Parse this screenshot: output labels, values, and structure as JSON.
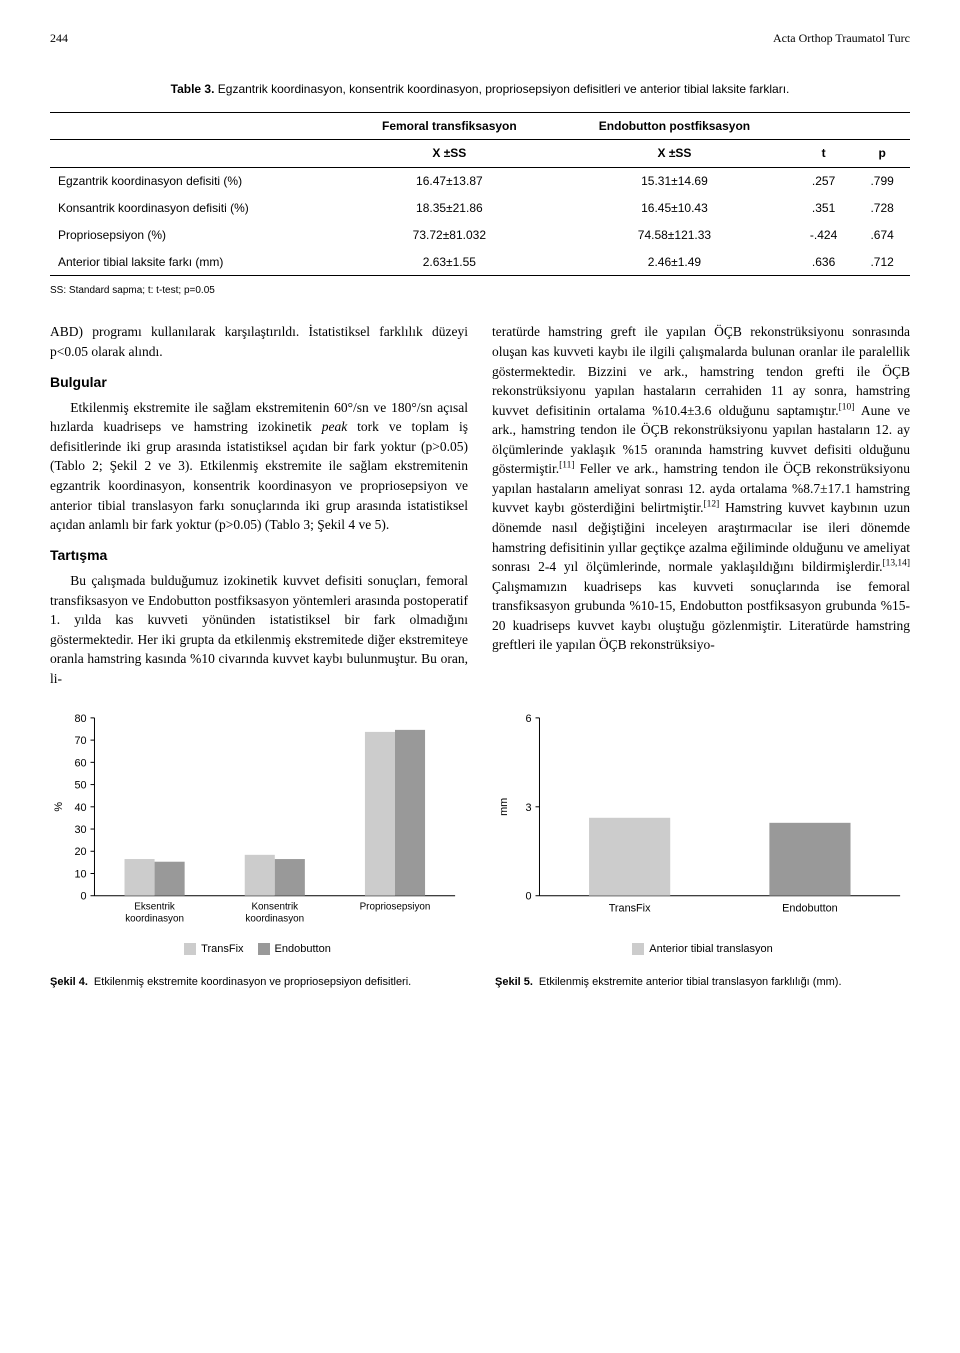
{
  "header": {
    "page_number": "244",
    "journal": "Acta Orthop Traumatol Turc"
  },
  "table3": {
    "label": "Table 3.",
    "caption": "Egzantrik koordinasyon, konsentrik koordinasyon, propriosepsiyon defisitleri ve anterior tibial laksite farkları.",
    "head_group1": "Femoral transfiksasyon",
    "head_group2": "Endobutton postfiksasyon",
    "col_xss": "X ±SS",
    "col_t": "t",
    "col_p": "p",
    "rows": [
      {
        "label": "Egzantrik koordinasyon defisiti (%)",
        "v1": "16.47±13.87",
        "v2": "15.31±14.69",
        "t": ".257",
        "p": ".799"
      },
      {
        "label": "Konsantrik koordinasyon defisiti (%)",
        "v1": "18.35±21.86",
        "v2": "16.45±10.43",
        "t": ".351",
        "p": ".728"
      },
      {
        "label": "Propriosepsiyon (%)",
        "v1": "73.72±81.032",
        "v2": "74.58±121.33",
        "t": "-.424",
        "p": ".674"
      },
      {
        "label": "Anterior tibial laksite farkı (mm)",
        "v1": "2.63±1.55",
        "v2": "2.46±1.49",
        "t": ".636",
        "p": ".712"
      }
    ],
    "footnote": "SS: Standard sapma; t: t-test; p=0.05"
  },
  "body": {
    "left": {
      "p1": "ABD) programı kullanılarak karşılaştırıldı. İstatistiksel farklılık düzeyi p<0.05 olarak alındı.",
      "h1": "Bulgular",
      "p2a": "Etkilenmiş ekstremite ile sağlam ekstremitenin 60°/sn ve 180°/sn açısal hızlarda kuadriseps ve hamstring izokinetik ",
      "p2b": "peak",
      "p2c": " tork ve toplam iş defisitlerinde iki grup arasında istatistiksel açıdan bir fark yoktur (p>0.05) (Tablo 2; Şekil 2 ve 3). Etkilenmiş ekstremite ile sağlam ekstremitenin egzantrik koordinasyon, konsentrik koordinasyon ve propriosepsiyon ve anterior tibial translasyon farkı sonuçlarında iki grup arasında istatistiksel açıdan anlamlı bir fark yoktur (p>0.05) (Tablo 3; Şekil 4 ve 5).",
      "h2": "Tartışma",
      "p3": "Bu çalışmada bulduğumuz izokinetik kuvvet defisiti sonuçları, femoral transfiksasyon ve Endobutton postfiksasyon yöntemleri arasında postoperatif 1. yılda kas kuvveti yönünden istatistiksel bir fark olmadığını göstermektedir. Her iki grupta da etkilenmiş ekstremitede diğer ekstremiteye oranla hamstring kasında %10 civarında kuvvet kaybı bulunmuştur. Bu oran, li-"
    },
    "right": {
      "p1": "teratürde hamstring greft ile yapılan ÖÇB rekonstrüksiyonu sonrasında oluşan kas kuvveti kaybı ile ilgili çalışmalarda bulunan oranlar ile paralellik göstermektedir. Bizzini ve ark., hamstring tendon grefti ile ÖÇB rekonstrüksiyonu yapılan hastaların cerrahiden 11 ay sonra, hamstring kuvvet defisitinin ortalama %10.4±3.6 olduğunu saptamıştır.[10] Aune ve ark., hamstring tendon ile ÖÇB rekonstrüksiyonu yapılan hastaların 12. ay ölçümlerinde yaklaşık %15 oranında hamstring kuvvet defisiti olduğunu göstermiştir.[11] Feller ve ark., hamstring tendon ile ÖÇB rekonstrüksiyonu yapılan hastaların ameliyat sonrası 12. ayda ortalama %8.7±17.1 hamstring kuvvet kaybı gösterdiğini belirtmiştir.[12] Hamstring kuvvet kaybının uzun dönemde nasıl değiştiğini inceleyen araştırmacılar ise ileri dönemde hamstring defisitinin yıllar geçtikçe azalma eğiliminde olduğunu ve ameliyat sonrası 2-4 yıl ölçümlerinde, normale yaklaşıldığını bildirmişlerdir.[13,14] Çalışmamızın kuadriseps kas kuvveti sonuçlarında ise femoral transfiksasyon grubunda %10-15, Endobutton postfiksasyon grubunda %15-20 kuadriseps kuvvet kaybı oluştuğu gözlenmiştir. Literatürde hamstring greftleri ile yapılan ÖÇB rekonstrüksiyo-"
    }
  },
  "chart4": {
    "type": "grouped-bar",
    "y_label": "%",
    "y_ticks": [
      0,
      10,
      20,
      30,
      40,
      50,
      60,
      70,
      80
    ],
    "categories": [
      "Eksentrik\nkoordinasyon",
      "Konsentrik\nkoordinasyon",
      "Propriosepsiyon"
    ],
    "series": [
      {
        "name": "TransFix",
        "color": "#cccccc",
        "values": [
          16.5,
          18.4,
          73.7
        ]
      },
      {
        "name": "Endobutton",
        "color": "#999999",
        "values": [
          15.3,
          16.5,
          74.6
        ]
      }
    ],
    "legend_title": "",
    "colors": {
      "axis": "#000000",
      "grid": "#e0e0e0",
      "bg": "#ffffff"
    }
  },
  "chart5": {
    "type": "grouped-bar",
    "y_label": "mm",
    "y_ticks": [
      0,
      3,
      6
    ],
    "categories": [
      "TransFix",
      "Endobutton"
    ],
    "series": [
      {
        "name": "Anterior tibial translasyon",
        "color": "#cccccc",
        "values": [
          2.63
        ]
      },
      {
        "name": "Anterior tibial translasyon2",
        "color": "#999999",
        "values": [
          2.46
        ]
      }
    ],
    "legend_single": "Anterior tibial translasyon",
    "colors": {
      "axis": "#000000",
      "grid": "#e0e0e0",
      "bg": "#ffffff"
    }
  },
  "fig4": {
    "label": "Şekil 4.",
    "text": "Etkilenmiş ekstremite koordinasyon ve propriosepsiyon defisitleri."
  },
  "fig5": {
    "label": "Şekil 5.",
    "text": "Etkilenmiş ekstremite anterior tibial translasyon farklılığı (mm)."
  }
}
